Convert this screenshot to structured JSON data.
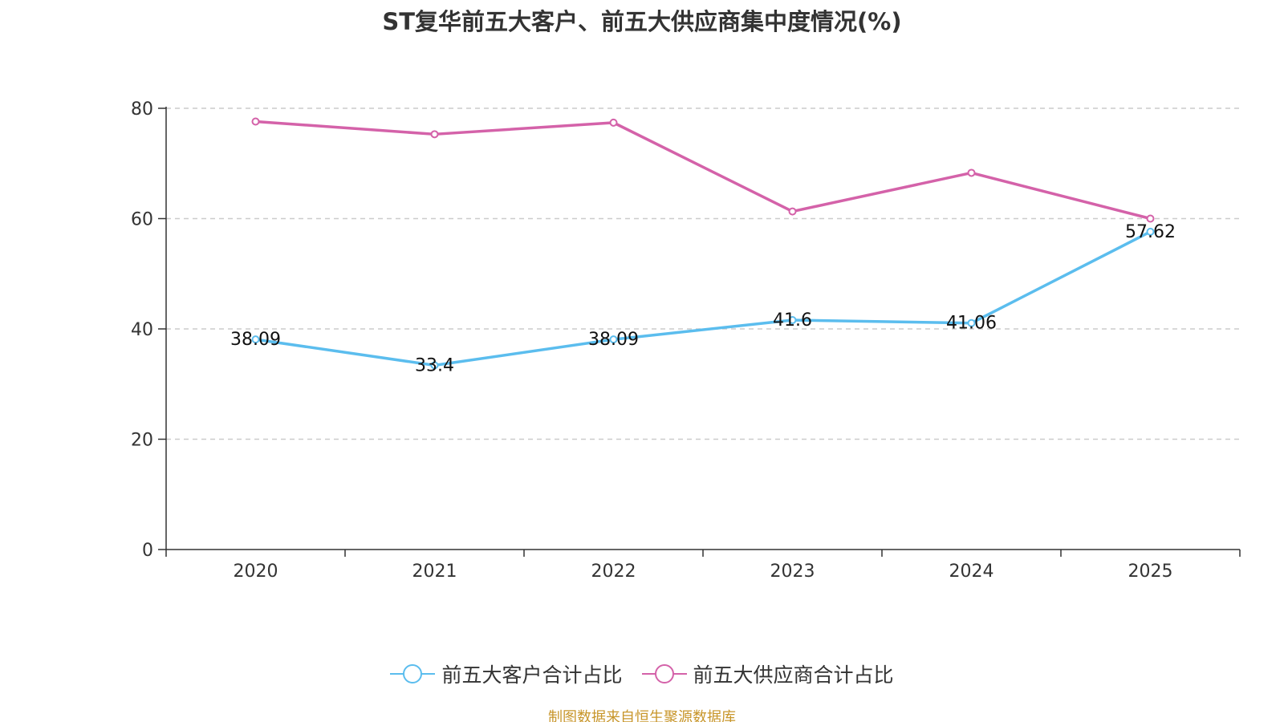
{
  "chart_data": {
    "type": "line",
    "title": "ST复华前五大客户、前五大供应商集中度情况(%)",
    "categories": [
      "2020",
      "2021",
      "2022",
      "2023",
      "2024",
      "2025"
    ],
    "ylim": [
      0,
      80
    ],
    "yticks": [
      0,
      20,
      40,
      60,
      80
    ],
    "grid": true,
    "legend_position": "bottom-center",
    "series": [
      {
        "name": "前五大客户合计占比",
        "color": "#5bbdee",
        "values": [
          38.09,
          33.4,
          38.09,
          41.6,
          41.06,
          57.62
        ],
        "labels": [
          "38.09",
          "33.4",
          "38.09",
          "41.6",
          "41.06",
          "57.62"
        ],
        "show_labels": true
      },
      {
        "name": "前五大供应商合计占比",
        "color": "#d462a9",
        "values": [
          77.6,
          75.3,
          77.4,
          61.3,
          68.3,
          60.0
        ],
        "show_labels": false
      }
    ]
  },
  "source_note": "制图数据来自恒生聚源数据库"
}
